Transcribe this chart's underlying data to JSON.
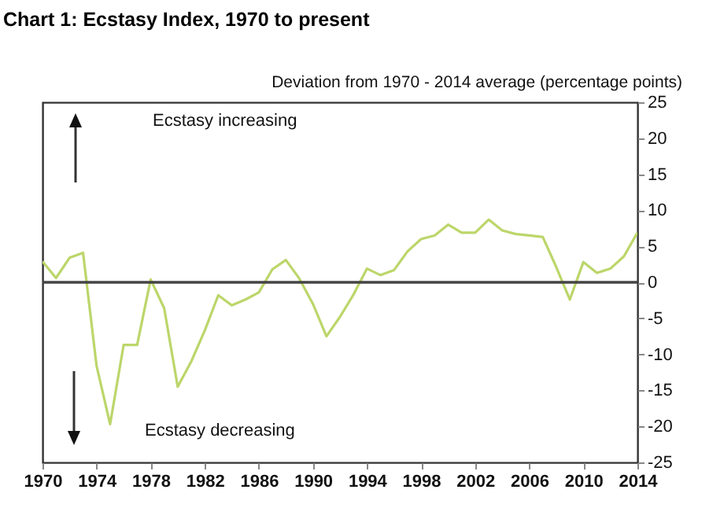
{
  "chart_data": {
    "type": "line",
    "title": "Chart 1: Ecstasy Index, 1970 to present",
    "ylabel": "Deviation from 1970 - 2014 average (percentage points)",
    "x": [
      1970,
      1971,
      1972,
      1973,
      1974,
      1975,
      1976,
      1977,
      1978,
      1979,
      1980,
      1981,
      1982,
      1983,
      1984,
      1985,
      1986,
      1987,
      1988,
      1989,
      1990,
      1991,
      1992,
      1993,
      1994,
      1995,
      1996,
      1997,
      1998,
      1999,
      2000,
      2001,
      2002,
      2003,
      2004,
      2005,
      2006,
      2007,
      2008,
      2009,
      2010,
      2011,
      2012,
      2013,
      2014
    ],
    "series": [
      {
        "color": "#bcd66a",
        "values": [
          2.9,
          0.6,
          3.4,
          4.1,
          -11.6,
          -19.7,
          -8.7,
          -8.7,
          0.4,
          -3.6,
          -14.5,
          -11,
          -6.7,
          -1.8,
          -3.2,
          -2.4,
          -1.4,
          1.8,
          3.1,
          0.5,
          -3,
          -7.5,
          -4.8,
          -1.7,
          1.9,
          1.0,
          1.7,
          4.3,
          6.0,
          6.5,
          8.0,
          6.9,
          6.9,
          8.7,
          7.2,
          6.7,
          6.5,
          6.3,
          2.1,
          -2.4,
          2.8,
          1.3,
          1.9,
          3.6,
          6.9
        ]
      }
    ],
    "xlim": [
      1970,
      2014
    ],
    "xticks": [
      1970,
      1974,
      1978,
      1982,
      1986,
      1990,
      1994,
      1998,
      2002,
      2006,
      2010,
      2014
    ],
    "ylim": [
      -25,
      25
    ],
    "yticks": [
      -25,
      -20,
      -15,
      -10,
      -5,
      0,
      5,
      10,
      15,
      20,
      25
    ],
    "ref_lines": [
      {
        "axis": "y",
        "value": 0,
        "color": "#444444"
      }
    ],
    "annotations": [
      "Ecstasy increasing",
      "Ecstasy decreasing"
    ],
    "grid": false
  }
}
